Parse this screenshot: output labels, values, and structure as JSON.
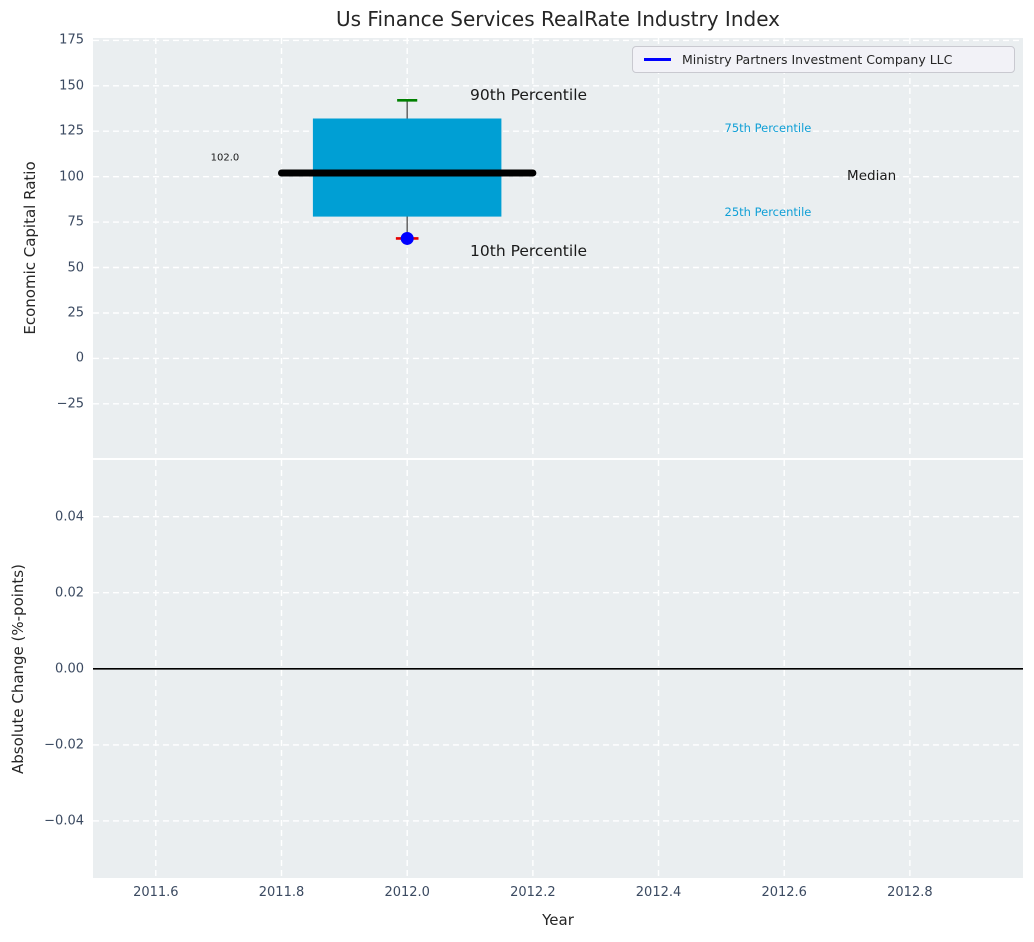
{
  "figure": {
    "title": "Us Finance Services RealRate Industry Index"
  },
  "legend": {
    "label": "Ministry Partners Investment Company LLC"
  },
  "colors": {
    "figure_bg": "#ffffff",
    "axes_bg": "#eaeef0",
    "grid": "#ffffff",
    "tick_text": "#3b4a61",
    "label_text": "#262626",
    "title_text": "#262626",
    "annotation_text": "#1a1a1a",
    "box_fill": "#009fd4",
    "cyan_text": "#0f9fd6",
    "green_cap": "#008000",
    "red_cap": "#e60000",
    "company_blue": "#0000ff",
    "median_line": "#000000",
    "whisker": "#5a5a5a",
    "zero_line": "#000000",
    "legend_bg": "#f2f2f7",
    "legend_border": "#c9c9d0"
  },
  "chart_data": [
    {
      "type": "boxplot",
      "subplot": "top",
      "title": "Us Finance Services RealRate Industry Index",
      "ylabel": "Economic Capital Ratio",
      "xlabel": "",
      "xlim": [
        2011.5,
        2012.98
      ],
      "ylim": [
        -54.8,
        176.3
      ],
      "grid": "white dashed, on",
      "legend_position": "upper right",
      "yticks": [
        {
          "v": 175,
          "label": "175"
        },
        {
          "v": 150,
          "label": "150"
        },
        {
          "v": 125,
          "label": "125"
        },
        {
          "v": 100,
          "label": "100"
        },
        {
          "v": 75,
          "label": "75"
        },
        {
          "v": 50,
          "label": "50"
        },
        {
          "v": 25,
          "label": "25"
        },
        {
          "v": 0,
          "label": "0"
        },
        {
          "v": -25,
          "label": "−25"
        }
      ],
      "box": {
        "center_x": 2012.0,
        "box_left": 2011.85,
        "box_right": 2012.15,
        "q25": 78,
        "median": 102,
        "q75": 132,
        "p10": 66,
        "p90": 142,
        "median_span": [
          2011.8,
          2012.2
        ],
        "cap_half_width_p90": 0.016,
        "cap_half_width_p10": 0.018
      },
      "company_point": {
        "name": "Ministry Partners Investment Company LLC",
        "x": 2012.0,
        "y": 66
      },
      "annotations": [
        {
          "id": "median-value",
          "text": "102.0",
          "x": 2011.71,
          "y": 110,
          "align": "center",
          "size": 10,
          "color": "dark"
        },
        {
          "id": "p90-label",
          "text": "90th Percentile",
          "x": 2012.1,
          "y": 145,
          "align": "left",
          "size": 15.5,
          "color": "dark"
        },
        {
          "id": "p10-label",
          "text": "10th Percentile",
          "x": 2012.1,
          "y": 59,
          "align": "left",
          "size": 15.5,
          "color": "dark"
        },
        {
          "id": "p75-label",
          "text": "75th Percentile",
          "x": 2012.505,
          "y": 127,
          "align": "left",
          "size": 11.5,
          "color": "cyan"
        },
        {
          "id": "p25-label",
          "text": "25th Percentile",
          "x": 2012.505,
          "y": 80.5,
          "align": "left",
          "size": 11.5,
          "color": "cyan"
        },
        {
          "id": "median-label",
          "text": "Median",
          "x": 2012.7,
          "y": 100.5,
          "align": "left",
          "size": 13.5,
          "color": "dark"
        }
      ]
    },
    {
      "type": "line",
      "subplot": "bottom",
      "ylabel": "Absolute Change (%-points)",
      "xlabel": "Year",
      "xlim": [
        2011.5,
        2012.98
      ],
      "ylim": [
        -0.055,
        0.0549
      ],
      "grid": "white dashed, on",
      "zero_line_y": 0.0,
      "yticks": [
        {
          "v": 0.04,
          "label": "0.04"
        },
        {
          "v": 0.02,
          "label": "0.02"
        },
        {
          "v": 0,
          "label": "0.00"
        },
        {
          "v": -0.02,
          "label": "−0.02"
        },
        {
          "v": -0.04,
          "label": "−0.04"
        }
      ],
      "xticks": [
        {
          "v": 2011.6,
          "label": "2011.6"
        },
        {
          "v": 2011.8,
          "label": "2011.8"
        },
        {
          "v": 2012.0,
          "label": "2012.0"
        },
        {
          "v": 2012.2,
          "label": "2012.2"
        },
        {
          "v": 2012.4,
          "label": "2012.4"
        },
        {
          "v": 2012.6,
          "label": "2012.6"
        },
        {
          "v": 2012.8,
          "label": "2012.8"
        }
      ],
      "series": []
    }
  ]
}
